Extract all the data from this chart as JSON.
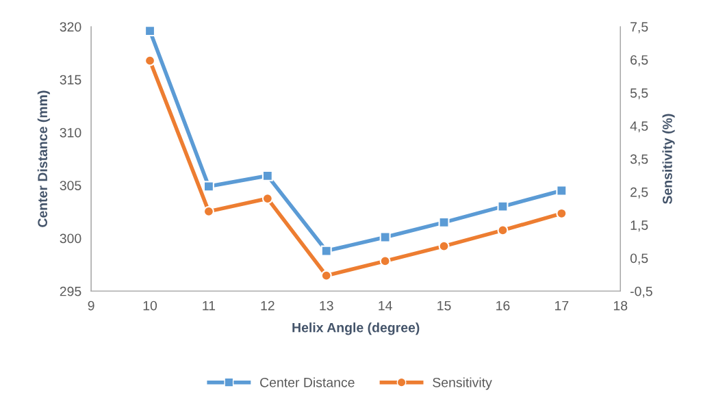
{
  "chart_data": {
    "type": "line",
    "xlabel": "Helix Angle (degree)",
    "ylabel": "Center Distance (mm)",
    "y2label": "Sensitivity (%)",
    "x": [
      10,
      11,
      12,
      13,
      14,
      15,
      16,
      17
    ],
    "series": [
      {
        "name": "Center Distance",
        "color": "#5b9bd5",
        "marker": "square",
        "values": [
          319.6,
          304.9,
          305.9,
          298.8,
          300.1,
          301.5,
          303.0,
          304.5
        ]
      },
      {
        "name": "Sensitivity",
        "color": "#ed7d31",
        "marker": "circle",
        "axis": "y2",
        "values": [
          6.47,
          1.91,
          2.3,
          -0.03,
          0.41,
          0.86,
          1.34,
          1.85
        ]
      }
    ],
    "xlim": [
      9,
      18
    ],
    "xticks": [
      9,
      10,
      11,
      12,
      13,
      14,
      15,
      16,
      17,
      18
    ],
    "ylim": [
      295,
      320
    ],
    "yticks": [
      295,
      300,
      305,
      310,
      315,
      320
    ],
    "y2lim": [
      -0.5,
      7.5
    ],
    "y2ticks": [
      {
        "value": -0.5,
        "label": "-0,5"
      },
      {
        "value": 0.5,
        "label": "0,5"
      },
      {
        "value": 1.5,
        "label": "1,5"
      },
      {
        "value": 2.5,
        "label": "2,5"
      },
      {
        "value": 3.5,
        "label": "3,5"
      },
      {
        "value": 4.5,
        "label": "4,5"
      },
      {
        "value": 5.5,
        "label": "5,5"
      },
      {
        "value": 6.5,
        "label": "6,5"
      },
      {
        "value": 7.5,
        "label": "7,5"
      }
    ],
    "grid": false,
    "legend": "bottom",
    "line_style": "solid"
  }
}
